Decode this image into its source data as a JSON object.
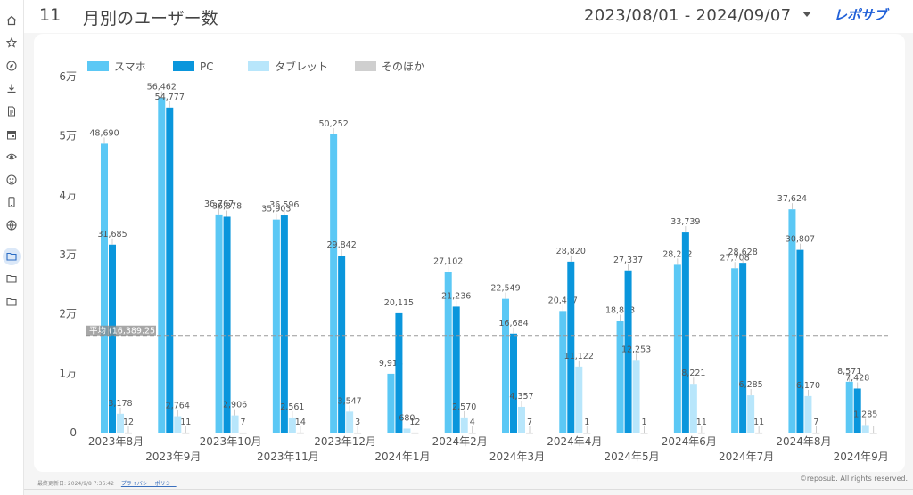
{
  "header": {
    "page_number": "11",
    "title": "月別のユーザー数",
    "date_range": "2023/08/01 - 2024/09/07",
    "brand": "レポサブ"
  },
  "sidebar": {
    "items": [
      {
        "icon": "home-icon"
      },
      {
        "icon": "star-icon"
      },
      {
        "icon": "compass-icon"
      },
      {
        "icon": "download-icon"
      },
      {
        "icon": "document-icon"
      },
      {
        "icon": "calendar-icon"
      },
      {
        "icon": "eye-icon"
      },
      {
        "icon": "face-icon"
      },
      {
        "icon": "phone-icon"
      },
      {
        "icon": "globe-icon"
      },
      {
        "icon": "folder-icon",
        "active": true
      },
      {
        "icon": "folder-icon"
      },
      {
        "icon": "folder-icon"
      }
    ]
  },
  "colors": {
    "smartphone": "#5bc8f5",
    "pc": "#0a96dc",
    "tablet": "#b8e6fb",
    "other": "#cfcfcf",
    "average_line": "#999999"
  },
  "chart_data": {
    "type": "bar",
    "categories": [
      "2023年8月",
      "2023年9月",
      "2023年10月",
      "2023年11月",
      "2023年12月",
      "2024年1月",
      "2024年2月",
      "2024年3月",
      "2024年4月",
      "2024年5月",
      "2024年6月",
      "2024年7月",
      "2024年8月",
      "2024年9月"
    ],
    "series": [
      {
        "name": "スマホ",
        "key": "smartphone",
        "values": [
          48690,
          56462,
          36767,
          35903,
          50252,
          9914,
          27102,
          22549,
          20497,
          18833,
          28292,
          27708,
          37624,
          8571
        ],
        "labels": [
          "48,690",
          "56,462",
          "36,767",
          "35,903",
          "50,252",
          "9,914",
          "27,102",
          "22,549",
          "20,497",
          "18,833",
          "28,292",
          "27,708",
          "37,624",
          "8,571"
        ]
      },
      {
        "name": "PC",
        "key": "pc",
        "values": [
          31685,
          54777,
          36378,
          36596,
          29842,
          20115,
          21236,
          16684,
          28820,
          27337,
          33739,
          28628,
          30807,
          7428
        ],
        "labels": [
          "31,685",
          "54,777",
          "36,378",
          "36,596",
          "29,842",
          "20,115",
          "21,236",
          "16,684",
          "28,820",
          "27,337",
          "33,739",
          "28,628",
          "30,807",
          "7,428"
        ]
      },
      {
        "name": "タブレット",
        "key": "tablet",
        "values": [
          3178,
          2764,
          2906,
          2561,
          3547,
          680,
          2570,
          4357,
          11122,
          12253,
          8221,
          6285,
          6170,
          1285
        ],
        "labels": [
          "3,178",
          "2,764",
          "2,906",
          "2,561",
          "3,547",
          "680",
          "2,570",
          "4,357",
          "11,122",
          "12,253",
          "8,221",
          "6,285",
          "6,170",
          "1,285"
        ]
      },
      {
        "name": "そのほか",
        "key": "other",
        "values": [
          12,
          11,
          7,
          14,
          3,
          12,
          4,
          7,
          1,
          1,
          11,
          11,
          7,
          0
        ],
        "labels": [
          "12",
          "11",
          "7",
          "14",
          "3",
          "12",
          "4",
          "7",
          "1",
          "1",
          "11",
          "11",
          "7",
          ""
        ]
      }
    ],
    "ylim": [
      0,
      60000
    ],
    "yticks": [
      0,
      10000,
      20000,
      30000,
      40000,
      50000,
      60000
    ],
    "ytick_labels": [
      "0",
      "1万",
      "2万",
      "3万",
      "4万",
      "5万",
      "6万"
    ],
    "average": 16389.25,
    "average_label": "平均 (16,389.25)",
    "legend_position": "top-left"
  },
  "footer": {
    "updated": "最終更新日: 2024/9/8 7:36:42",
    "privacy": "プライバシー ポリシー",
    "copyright": "©reposub. All rights reserved."
  }
}
